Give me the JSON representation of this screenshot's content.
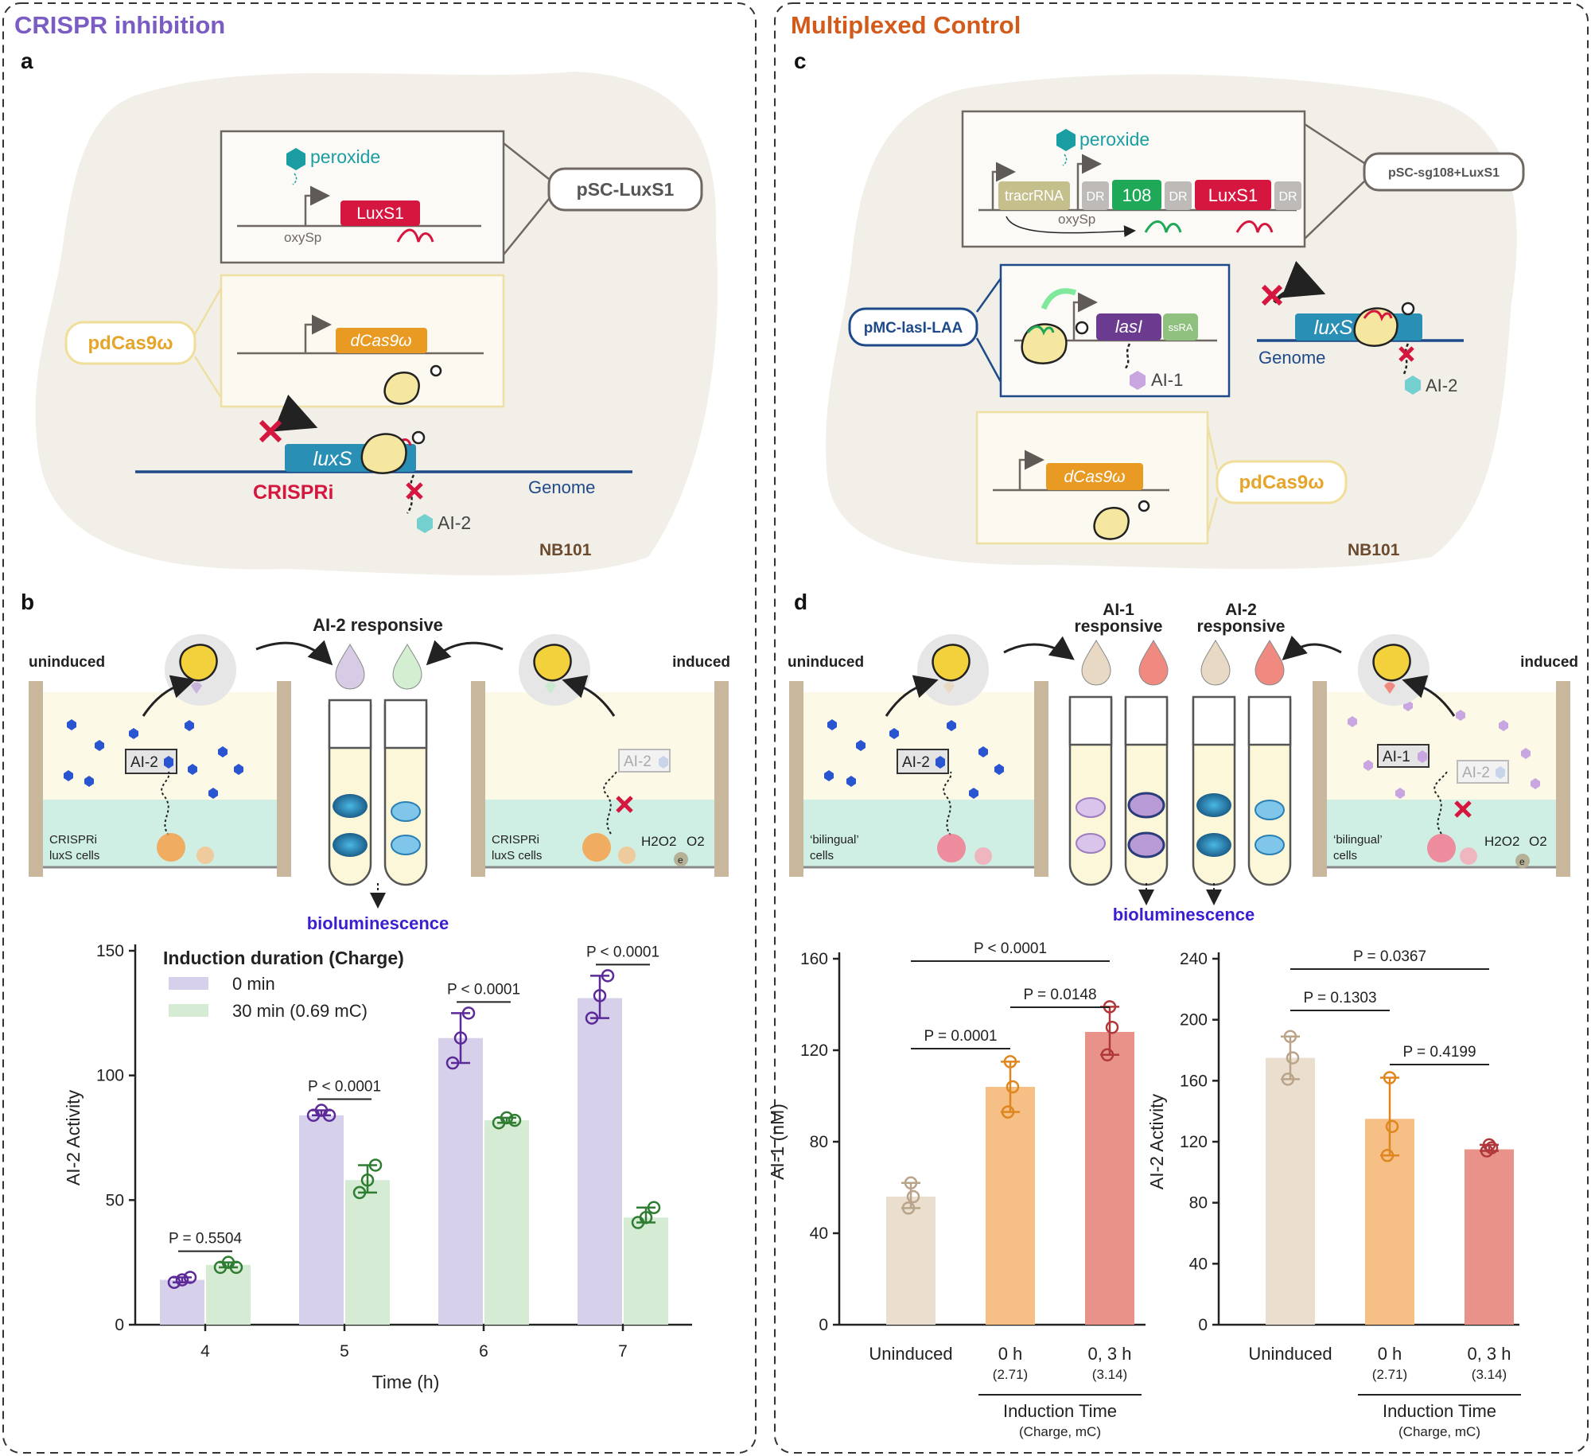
{
  "left": {
    "section_title": "CRISPR inhibition",
    "label_a": "a",
    "label_b": "b",
    "colors": {
      "title": "#7a5cc4"
    },
    "a": {
      "peroxide": "peroxide",
      "luxs1": "LuxS1",
      "oxysp": "oxySp",
      "plasmid_luxs1": "pSC-LuxS1",
      "plasmid_dcas": "pdCas9ω",
      "dcas": "dCas9ω",
      "luxs": "luxS",
      "crispri": "CRISPRi",
      "genome": "Genome",
      "ai2": "AI-2",
      "strain": "NB101"
    },
    "b": {
      "responsive": "AI-2 responsive",
      "uninduced": "uninduced",
      "induced": "induced",
      "ai2_box_l": "AI-2",
      "ai2_box_r": "AI-2",
      "cells_l1": "CRISPRi",
      "cells_l2": "luxS cells",
      "cells_r1": "CRISPRi",
      "cells_r2": "luxS cells",
      "h2o2": "H2O2",
      "o2": "O2",
      "electron": "e",
      "biolum": "bioluminescence"
    }
  },
  "right": {
    "section_title": "Multiplexed Control",
    "label_c": "c",
    "label_d": "d",
    "colors": {
      "title": "#d35a1a"
    },
    "c": {
      "peroxide": "peroxide",
      "tracr": "tracrRNA",
      "dr": "DR",
      "g108": "108",
      "luxs1": "LuxS1",
      "oxysp": "oxySp",
      "plasmid_sg": "pSC-sg108+LuxS1",
      "plasmid_mc": "pMC-lasI-LAA",
      "lasi": "lasI",
      "ssra": "ssRA",
      "ai1": "AI-1",
      "luxs": "luxS",
      "genome": "Genome",
      "ai2": "AI-2",
      "dcas": "dCas9ω",
      "plasmid_dcas": "pdCas9ω",
      "strain": "NB101"
    },
    "d": {
      "resp1_l1": "AI-1",
      "resp1_l2": "responsive",
      "resp2_l1": "AI-2",
      "resp2_l2": "responsive",
      "uninduced": "uninduced",
      "induced": "induced",
      "ai2_box_l": "AI-2",
      "ai1_box_r": "AI-1",
      "ai2_box_r": "AI-2",
      "cells_l1": "‘bilingual’",
      "cells_l2": "cells",
      "cells_r1": "‘bilingual’",
      "cells_r2": "cells",
      "h2o2": "H2O2",
      "o2": "O2",
      "electron": "e",
      "biolum": "bioluminescence"
    }
  },
  "chart_data": [
    {
      "type": "bar",
      "panel": "b",
      "xlabel": "Time (h)",
      "ylabel": "AI-2 Activity",
      "ylim": [
        0,
        150
      ],
      "yticks": [
        0,
        50,
        100,
        150
      ],
      "categories": [
        "4",
        "5",
        "6",
        "7"
      ],
      "legend_title": "Induction duration (Charge)",
      "legend_position": "top-left",
      "series": [
        {
          "name": "0 min",
          "color": "#d7d0ea",
          "point_color": "#5b2a98",
          "values": [
            18,
            84,
            115,
            131
          ],
          "points": [
            [
              17,
              18,
              19
            ],
            [
              84,
              86,
              84
            ],
            [
              105,
              115,
              125
            ],
            [
              123,
              132,
              140
            ]
          ]
        },
        {
          "name": "30 min (0.69 mC)",
          "color": "#d5ebd4",
          "point_color": "#2f7d32",
          "values": [
            24,
            58,
            82,
            43
          ],
          "points": [
            [
              23,
              25,
              23
            ],
            [
              53,
              58,
              64
            ],
            [
              81,
              83,
              82
            ],
            [
              41,
              43,
              47
            ]
          ]
        }
      ],
      "annotations": [
        "P = 0.5504",
        "P < 0.0001",
        "P < 0.0001",
        "P < 0.0001"
      ]
    },
    {
      "type": "bar",
      "panel": "d-left",
      "ylabel": "AI-1 (nM)",
      "ylim": [
        0,
        160
      ],
      "yticks": [
        0,
        40,
        80,
        120,
        160
      ],
      "categories": [
        "Uninduced",
        "0 h",
        "0, 3 h"
      ],
      "sublabels": [
        "",
        "(2.71)",
        "(3.14)"
      ],
      "group_label": "Induction Time",
      "group_sublabel": "(Charge, mC)",
      "colors": [
        "#eadfcf",
        "#f5bf85",
        "#e8928a"
      ],
      "point_colors": [
        "#b9a48a",
        "#e0861f",
        "#b0383a"
      ],
      "values": [
        56,
        104,
        128
      ],
      "points": [
        [
          51,
          56,
          62
        ],
        [
          93,
          104,
          115
        ],
        [
          118,
          130,
          139
        ]
      ],
      "annotations": [
        "P < 0.0001",
        "P = 0.0148",
        "P = 0.0001"
      ]
    },
    {
      "type": "bar",
      "panel": "d-right",
      "ylabel": "AI-2 Activity",
      "ylim": [
        0,
        240
      ],
      "yticks": [
        0,
        40,
        80,
        120,
        160,
        200,
        240
      ],
      "categories": [
        "Uninduced",
        "0 h",
        "0, 3 h"
      ],
      "sublabels": [
        "",
        "(2.71)",
        "(3.14)"
      ],
      "group_label": "Induction Time",
      "group_sublabel": "(Charge, mC)",
      "colors": [
        "#eadfcf",
        "#f5bf85",
        "#e8928a"
      ],
      "point_colors": [
        "#b9a48a",
        "#e0861f",
        "#b0383a"
      ],
      "values": [
        175,
        135,
        115
      ],
      "points": [
        [
          161,
          175,
          189
        ],
        [
          111,
          130,
          162
        ],
        [
          114,
          116,
          118
        ]
      ],
      "annotations": [
        "P = 0.0367",
        "P = 0.1303",
        "P = 0.4199"
      ]
    }
  ]
}
